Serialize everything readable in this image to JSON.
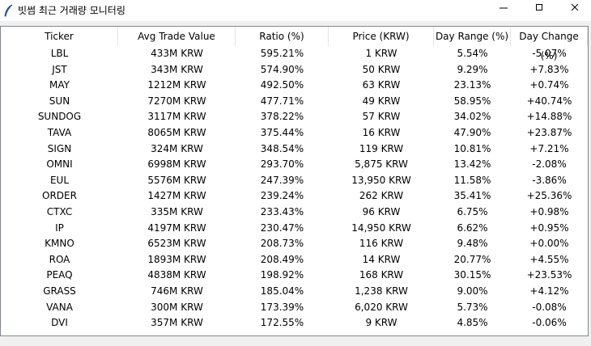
{
  "header": {
    "title": "빗썸 최근 거래량 모니터링"
  },
  "table": {
    "columns": [
      "Ticker",
      "Avg Trade Value",
      "Ratio (%)",
      "Price (KRW)",
      "Day Range (%)",
      "Day Change (%)"
    ],
    "rows": [
      [
        "LBL",
        "433M KRW",
        "595.21%",
        "1 KRW",
        "5.54%",
        "-5.07%"
      ],
      [
        "JST",
        "343M KRW",
        "574.90%",
        "50 KRW",
        "9.29%",
        "+7.83%"
      ],
      [
        "MAY",
        "1212M KRW",
        "492.50%",
        "63 KRW",
        "23.13%",
        "+0.74%"
      ],
      [
        "SUN",
        "7270M KRW",
        "477.71%",
        "49 KRW",
        "58.95%",
        "+40.74%"
      ],
      [
        "SUNDOG",
        "3117M KRW",
        "378.22%",
        "57 KRW",
        "34.02%",
        "+14.88%"
      ],
      [
        "TAVA",
        "8065M KRW",
        "375.44%",
        "16 KRW",
        "47.90%",
        "+23.87%"
      ],
      [
        "SIGN",
        "324M KRW",
        "348.54%",
        "119 KRW",
        "10.81%",
        "+7.21%"
      ],
      [
        "OMNI",
        "6998M KRW",
        "293.70%",
        "5,875 KRW",
        "13.42%",
        "-2.08%"
      ],
      [
        "EUL",
        "5576M KRW",
        "247.39%",
        "13,950 KRW",
        "11.58%",
        "-3.86%"
      ],
      [
        "ORDER",
        "1427M KRW",
        "239.24%",
        "262 KRW",
        "35.41%",
        "+25.36%"
      ],
      [
        "CTXC",
        "335M KRW",
        "233.43%",
        "96 KRW",
        "6.75%",
        "+0.98%"
      ],
      [
        "IP",
        "4197M KRW",
        "230.47%",
        "14,950 KRW",
        "6.62%",
        "+0.95%"
      ],
      [
        "KMNO",
        "6523M KRW",
        "208.73%",
        "116 KRW",
        "9.48%",
        "+0.00%"
      ],
      [
        "ROA",
        "1893M KRW",
        "208.49%",
        "14 KRW",
        "20.77%",
        "+4.55%"
      ],
      [
        "PEAQ",
        "4838M KRW",
        "198.92%",
        "168 KRW",
        "30.15%",
        "+23.53%"
      ],
      [
        "GRASS",
        "746M KRW",
        "185.04%",
        "1,238 KRW",
        "9.00%",
        "+4.12%"
      ],
      [
        "VANA",
        "300M KRW",
        "173.39%",
        "6,020 KRW",
        "5.73%",
        "-0.08%"
      ],
      [
        "DVI",
        "357M KRW",
        "172.55%",
        "9 KRW",
        "4.85%",
        "-0.06%"
      ]
    ]
  }
}
